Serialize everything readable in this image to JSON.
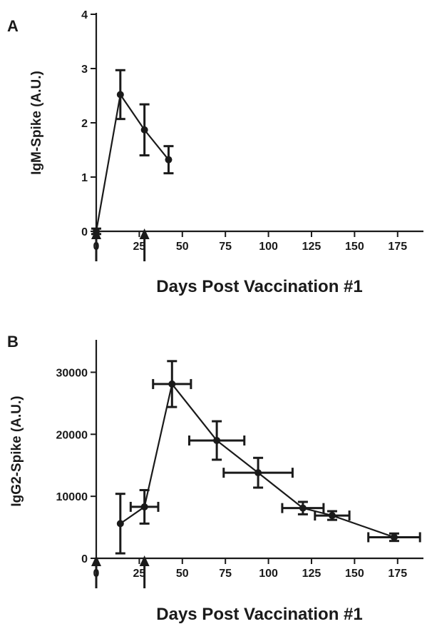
{
  "chart_data": [
    {
      "panel": "A",
      "type": "line",
      "xlabel": "Days Post Vaccination #1",
      "ylabel": "IgM-Spike (A.U.)",
      "xlim": [
        0,
        190
      ],
      "ylim": [
        0,
        4
      ],
      "xticks": [
        0,
        25,
        50,
        75,
        100,
        125,
        150,
        175
      ],
      "yticks": [
        0,
        1,
        2,
        3,
        4
      ],
      "arrows_at_days": [
        0,
        28
      ],
      "series": [
        {
          "points": [
            {
              "x": 0,
              "y": 0,
              "yerr": 0.05,
              "xerr": 0
            },
            {
              "x": 14,
              "y": 2.52,
              "yerr": 0.45,
              "xerr": 0
            },
            {
              "x": 28,
              "y": 1.87,
              "yerr": 0.47,
              "xerr": 0
            },
            {
              "x": 42,
              "y": 1.32,
              "yerr": 0.25,
              "xerr": 0
            }
          ]
        }
      ]
    },
    {
      "panel": "B",
      "type": "line",
      "xlabel": "Days Post Vaccination #1",
      "ylabel": "IgG2-Spike (A.U.)",
      "xlim": [
        0,
        190
      ],
      "ylim": [
        0,
        35000
      ],
      "xticks": [
        0,
        25,
        50,
        75,
        100,
        125,
        150,
        175
      ],
      "yticks": [
        0,
        10000,
        20000,
        30000
      ],
      "arrows_at_days": [
        0,
        28
      ],
      "series": [
        {
          "points": [
            {
              "x": 14,
              "y": 5600,
              "yerr": 4800,
              "xerr": 0
            },
            {
              "x": 28,
              "y": 8300,
              "yerr": 2700,
              "xerr": 8
            },
            {
              "x": 44,
              "y": 28100,
              "yerr": 3700,
              "xerr": 11
            },
            {
              "x": 70,
              "y": 19000,
              "yerr": 3100,
              "xerr": 16
            },
            {
              "x": 94,
              "y": 13800,
              "yerr": 2400,
              "xerr": 20
            },
            {
              "x": 120,
              "y": 8100,
              "yerr": 1000,
              "xerr": 12
            },
            {
              "x": 137,
              "y": 6900,
              "yerr": 700,
              "xerr": 10
            },
            {
              "x": 173,
              "y": 3400,
              "yerr": 600,
              "xerr": 15
            }
          ]
        }
      ]
    }
  ]
}
